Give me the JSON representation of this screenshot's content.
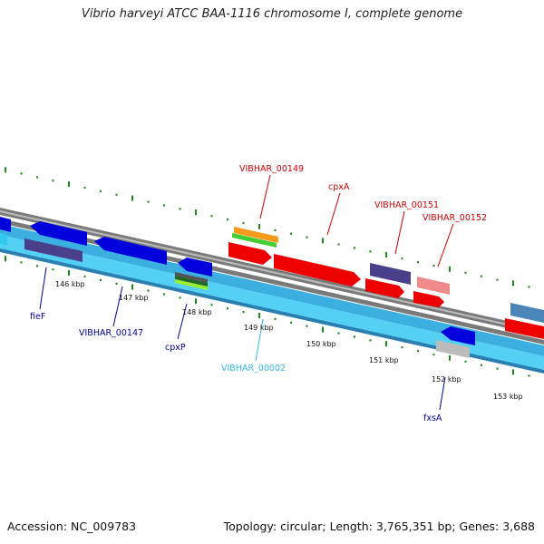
{
  "title": "Vibrio harveyi ATCC BAA-1116 chromosome I, complete genome",
  "footer": {
    "accession": "Accession: NC_009783",
    "summary": "Topology: circular; Length: 3,765,351 bp; Genes: 3,688"
  },
  "colors": {
    "forward_label": "#cc0000",
    "reverse_label": "#000099",
    "rna_label": "#33bbdd",
    "backbone": "#777777",
    "tick": "#1a8a1a",
    "lane_light": "#55d0f5"
  },
  "tick_labels": [
    "146 kbp",
    "147 kbp",
    "148 kbp",
    "149 kbp",
    "150 kbp",
    "151 kbp",
    "152 kbp",
    "153 kbp"
  ],
  "gene_labels": {
    "VIBHAR_00149": "VIBHAR_00149",
    "cpxA": "cpxA",
    "VIBHAR_00151": "VIBHAR_00151",
    "VIBHAR_00152": "VIBHAR_00152",
    "fieF": "fieF",
    "VIBHAR_00147": "VIBHAR_00147",
    "cpxP": "cpxP",
    "VIBHAR_00002": "VIBHAR_00002",
    "fxsA": "fxsA"
  }
}
